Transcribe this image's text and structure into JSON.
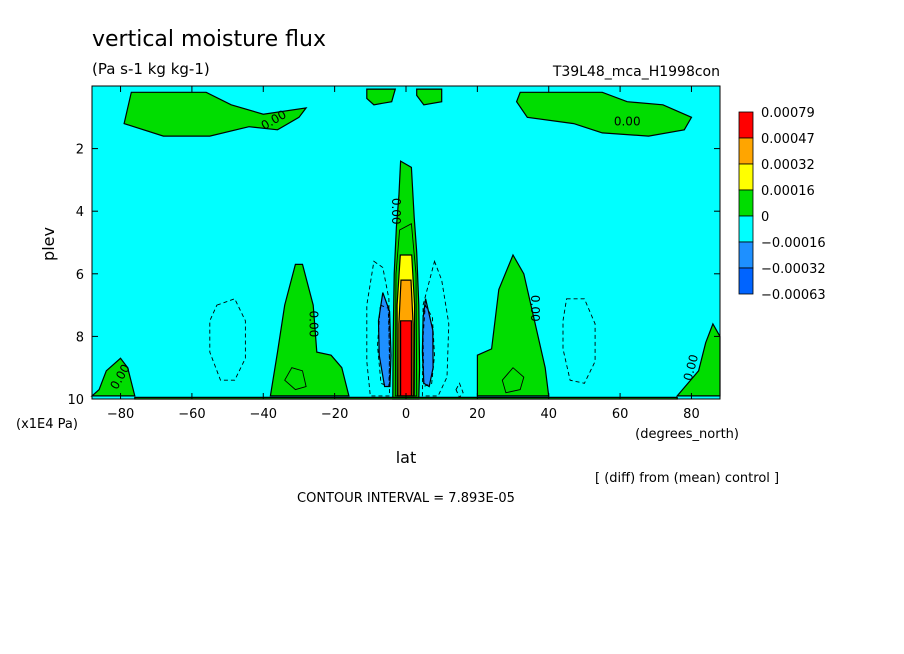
{
  "chart_data": {
    "type": "heatmap",
    "title": "vertical moisture flux",
    "subtitle": "(Pa s-1 kg kg-1)",
    "run_label": "T39L48_mca_H1998con",
    "xlabel": "lat",
    "x_units": "(degrees_north)",
    "ylabel": "plev",
    "y_units": "(x1E4 Pa)",
    "xlim": [
      -88,
      88
    ],
    "ylim": [
      10,
      0
    ],
    "x_ticks": [
      -80,
      -60,
      -40,
      -20,
      0,
      20,
      40,
      60,
      80
    ],
    "x_tick_labels": [
      "−80",
      "−60",
      "−40",
      "−20",
      "0",
      "20",
      "40",
      "60",
      "80"
    ],
    "y_ticks": [
      2,
      4,
      6,
      8,
      10
    ],
    "y_tick_labels": [
      "2",
      "4",
      "6",
      "8",
      "10"
    ],
    "contour_interval_text": "CONTOUR INTERVAL = 7.893E-05",
    "diff_note": "[ (diff) from (mean) control ]",
    "contour_labels": [
      "0.00",
      "0.00",
      "0.00",
      "0.00",
      "0.00",
      "0.00",
      "0.00"
    ],
    "legend": {
      "placement": "right",
      "colors": [
        "#ff0000",
        "#ffa500",
        "#ffff00",
        "#00dd00",
        "#00ffff",
        "#1e90ff",
        "#0064ff"
      ],
      "labels": [
        "0.00079",
        "0.00047",
        "0.00032",
        "0.00016",
        "0",
        "−0.00016",
        "−0.00032",
        "−0.00063"
      ]
    },
    "background_color": "#00ffff"
  }
}
